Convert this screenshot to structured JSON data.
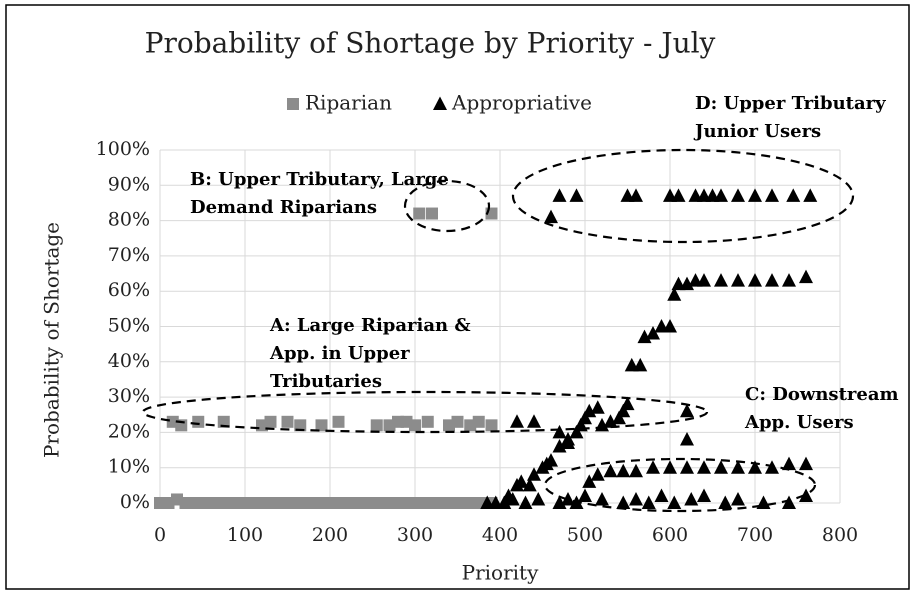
{
  "chart_data": {
    "type": "scatter",
    "title": "Probability of Shortage by Priority  - July",
    "x_label": "Priority",
    "y_label": "Probability of Shortage",
    "xlim": [
      0,
      800
    ],
    "xticks": [
      0,
      100,
      200,
      300,
      400,
      500,
      600,
      700,
      800
    ],
    "ylim": [
      0,
      100
    ],
    "yticks": [
      {
        "value": 0,
        "label": "0%"
      },
      {
        "value": 10,
        "label": "10%"
      },
      {
        "value": 20,
        "label": "20%"
      },
      {
        "value": 30,
        "label": "30%"
      },
      {
        "value": 40,
        "label": "40%"
      },
      {
        "value": 50,
        "label": "50%"
      },
      {
        "value": 60,
        "label": "60%"
      },
      {
        "value": 70,
        "label": "70%"
      },
      {
        "value": 80,
        "label": "80%"
      },
      {
        "value": 90,
        "label": "90%"
      },
      {
        "value": 100,
        "label": "100%"
      }
    ],
    "grid": true,
    "series": [
      {
        "name": "Riparian",
        "color": "#8c8c8c",
        "marker": "square",
        "x": [
          0,
          10,
          20,
          30,
          40,
          50,
          60,
          70,
          80,
          90,
          100,
          110,
          120,
          130,
          140,
          150,
          160,
          170,
          180,
          190,
          200,
          210,
          220,
          230,
          240,
          250,
          260,
          270,
          280,
          290,
          300,
          310,
          320,
          330,
          340,
          350,
          360,
          370,
          380,
          390,
          15,
          25,
          45,
          75,
          120,
          130,
          150,
          165,
          190,
          210,
          255,
          270,
          280,
          290,
          300,
          315,
          340,
          350,
          365,
          375,
          390,
          305,
          320,
          390
        ],
        "values": [
          0,
          0,
          1,
          0,
          0,
          0,
          0,
          0,
          0,
          0,
          0,
          0,
          0,
          0,
          0,
          0,
          0,
          0,
          0,
          0,
          0,
          0,
          0,
          0,
          0,
          0,
          0,
          0,
          0,
          0,
          0,
          0,
          0,
          0,
          0,
          0,
          0,
          0,
          0,
          0,
          23,
          22,
          23,
          23,
          22,
          23,
          23,
          22,
          22,
          23,
          22,
          22,
          23,
          23,
          22,
          23,
          22,
          23,
          22,
          23,
          22,
          82,
          82,
          82
        ]
      },
      {
        "name": "Appropriative",
        "color": "#000000",
        "marker": "triangle",
        "x": [
          385,
          395,
          405,
          415,
          430,
          445,
          470,
          480,
          490,
          500,
          520,
          545,
          560,
          575,
          590,
          605,
          625,
          640,
          665,
          680,
          710,
          740,
          760,
          410,
          420,
          425,
          435,
          440,
          450,
          455,
          460,
          470,
          480,
          490,
          495,
          500,
          505,
          515,
          520,
          530,
          540,
          545,
          550,
          555,
          565,
          570,
          580,
          590,
          600,
          605,
          610,
          620,
          630,
          640,
          660,
          680,
          700,
          720,
          740,
          760,
          460,
          470,
          490,
          550,
          560,
          600,
          610,
          630,
          640,
          650,
          660,
          680,
          700,
          720,
          745,
          765,
          505,
          515,
          530,
          545,
          560,
          580,
          600,
          620,
          640,
          660,
          680,
          700,
          720,
          740,
          760,
          420,
          440,
          620,
          620,
          470,
          480
        ],
        "values": [
          0,
          0,
          0,
          1,
          0,
          1,
          0,
          1,
          0,
          2,
          1,
          0,
          1,
          0,
          2,
          0,
          1,
          2,
          0,
          1,
          0,
          0,
          2,
          2,
          5,
          6,
          5,
          8,
          10,
          11,
          12,
          16,
          18,
          20,
          22,
          24,
          26,
          27,
          22,
          23,
          24,
          26,
          28,
          39,
          39,
          47,
          48,
          50,
          50,
          59,
          62,
          62,
          63,
          63,
          63,
          63,
          63,
          63,
          63,
          64,
          81,
          87,
          87,
          87,
          87,
          87,
          87,
          87,
          87,
          87,
          87,
          87,
          87,
          87,
          87,
          87,
          6,
          8,
          9,
          9,
          9,
          10,
          10,
          10,
          10,
          10,
          10,
          10,
          10,
          11,
          11,
          23,
          23,
          26,
          18,
          20,
          17
        ]
      }
    ],
    "annotations": [
      [
        "B: Upper Tributary, Large",
        "Demand Riparians"
      ],
      [
        "D: Upper Tributary",
        "Junior Users"
      ],
      [
        "A: Large Riparian &",
        "App.  in Upper",
        "Tributaries"
      ],
      [
        "C: Downstream",
        "App. Users"
      ]
    ]
  }
}
